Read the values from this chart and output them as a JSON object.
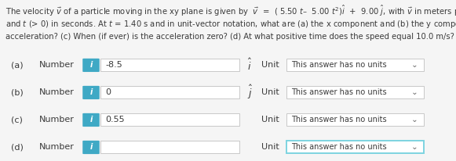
{
  "title_lines": [
    "The velocity $\\vec{v}$ of a particle moving in the xy plane is given by  $\\vec{v}$  =  ( 5.50 $t$–  5.00 $t^2$)$\\hat{i}$  +  9.00 $\\hat{j}$, with $\\vec{v}$ in meters per second",
    "and $t$ (> 0) in seconds. At $t$ = 1.40 s and in unit-vector notation, what are (a) the x component and (b) the y component of the",
    "acceleration? (c) When (if ever) is the acceleration zero? (d) At what positive time does the speed equal 10.0 m/s?"
  ],
  "rows": [
    {
      "label_a": "(a)",
      "label_b": "Number",
      "value": "-8.5",
      "unit_symbol": "$\\hat{i}$",
      "show_unit_sym": true,
      "unit_label": "Unit",
      "dropdown": "This answer has no units",
      "highlight": false
    },
    {
      "label_a": "(b)",
      "label_b": "Number",
      "value": "0",
      "unit_symbol": "$\\hat{j}$",
      "show_unit_sym": true,
      "unit_label": "Unit",
      "dropdown": "This answer has no units",
      "highlight": false
    },
    {
      "label_a": "(c)",
      "label_b": "Number",
      "value": "0.55",
      "unit_symbol": "",
      "show_unit_sym": false,
      "unit_label": "Unit",
      "dropdown": "This answer has no units",
      "highlight": false
    },
    {
      "label_a": "(d)",
      "label_b": "Number",
      "value": "",
      "unit_symbol": "",
      "show_unit_sym": false,
      "unit_label": "Unit",
      "dropdown": "This answer has no units",
      "highlight": true
    }
  ],
  "icon_color": "#3fa9c5",
  "icon_text_color": "#ffffff",
  "box_bg": "#ffffff",
  "box_border": "#c8c8c8",
  "dropdown_border_normal": "#c8c8c8",
  "dropdown_border_highlight": "#7dd4e0",
  "bg_color": "#f5f5f5",
  "text_color": "#3a3a3a",
  "title_fontsize": 7.2,
  "row_fontsize": 8.0,
  "small_fontsize": 7.0
}
